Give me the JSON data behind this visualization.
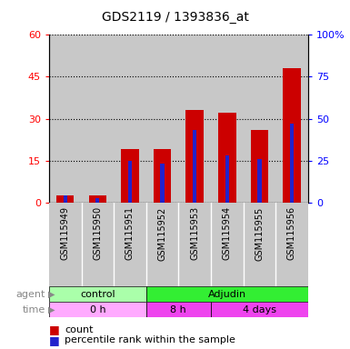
{
  "title": "GDS2119 / 1393836_at",
  "samples": [
    "GSM115949",
    "GSM115950",
    "GSM115951",
    "GSM115952",
    "GSM115953",
    "GSM115954",
    "GSM115955",
    "GSM115956"
  ],
  "count_values": [
    2.5,
    2.5,
    19.0,
    19.0,
    33.0,
    32.0,
    26.0,
    48.0
  ],
  "percentile_values": [
    4.0,
    2.5,
    25.0,
    23.0,
    43.0,
    28.0,
    26.0,
    47.0
  ],
  "left_ylim": [
    0,
    60
  ],
  "right_ylim": [
    0,
    100
  ],
  "left_yticks": [
    0,
    15,
    30,
    45,
    60
  ],
  "right_yticks": [
    0,
    25,
    50,
    75,
    100
  ],
  "right_yticklabels": [
    "0",
    "25",
    "50",
    "75",
    "100%"
  ],
  "bar_color": "#CC0000",
  "percentile_color": "#2222CC",
  "agent_control_color": "#AAFFAA",
  "agent_adjudin_color": "#33EE33",
  "time_0h_color": "#FFAAFF",
  "time_8h_color": "#EE44EE",
  "time_4days_color": "#EE44EE",
  "sample_bg": "#C8C8C8",
  "agent_split": 3,
  "time_splits": [
    3,
    5
  ]
}
